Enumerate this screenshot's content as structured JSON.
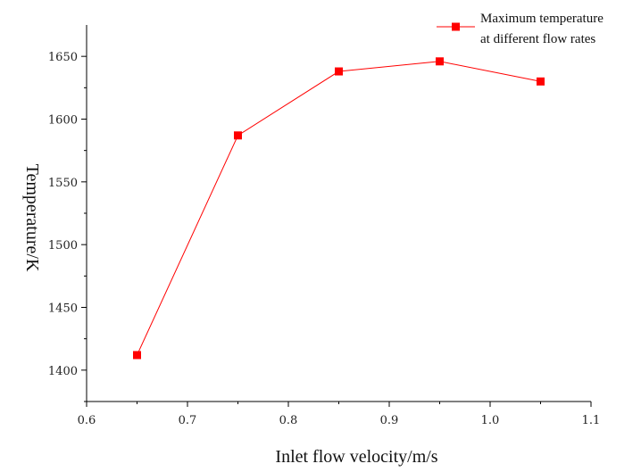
{
  "chart_data": {
    "type": "line",
    "title": "",
    "xlabel": "Inlet flow velocity/m/s",
    "ylabel": "Temperature/K",
    "xlim": [
      0.6,
      1.1
    ],
    "ylim": [
      1375,
      1675
    ],
    "x_ticks": [
      "0.6",
      "0.7",
      "0.8",
      "0.9",
      "1.0",
      "1.1"
    ],
    "y_ticks": [
      "1400",
      "1450",
      "1500",
      "1550",
      "1600",
      "1650"
    ],
    "grid": false,
    "legend_position": "top-right",
    "series": [
      {
        "name": "Maximum temperature at different flow rates",
        "legend_lines": [
          "Maximum temperature",
          "at different flow rates"
        ],
        "color": "#ff0000",
        "marker": "square",
        "x": [
          0.65,
          0.75,
          0.85,
          0.95,
          1.05
        ],
        "y": [
          1412,
          1587,
          1638,
          1646,
          1630
        ]
      }
    ]
  }
}
